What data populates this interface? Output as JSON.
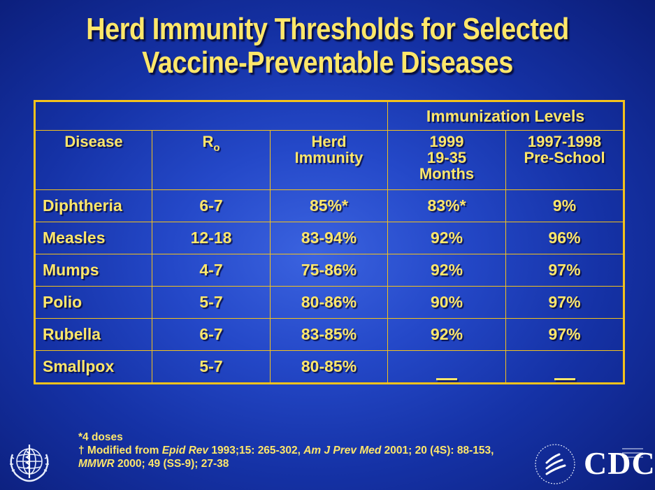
{
  "title": {
    "line1": "Herd Immunity Thresholds for Selected",
    "line2": "Vaccine-Preventable Diseases"
  },
  "table": {
    "group_header": "Immunization Levels",
    "headers": {
      "disease": "Disease",
      "ro_main": "R",
      "ro_sub": "o",
      "herd_line1": "Herd",
      "herd_line2": "Immunity",
      "y1999_line1": "1999",
      "y1999_line2": "19-35",
      "y1999_line3": "Months",
      "y9798_line1": "1997-1998",
      "y9798_line2": "Pre-School"
    },
    "rows": [
      {
        "disease": "Diphtheria",
        "ro": "6-7",
        "herd": "85%*",
        "m1999": "83%*",
        "preschool": "9%"
      },
      {
        "disease": "Measles",
        "ro": "12-18",
        "herd": "83-94%",
        "m1999": "92%",
        "preschool": "96%"
      },
      {
        "disease": "Mumps",
        "ro": "4-7",
        "herd": "75-86%",
        "m1999": "92%",
        "preschool": "97%"
      },
      {
        "disease": "Polio",
        "ro": "5-7",
        "herd": "80-86%",
        "m1999": "90%",
        "preschool": "97%"
      },
      {
        "disease": "Rubella",
        "ro": "6-7",
        "herd": "83-85%",
        "m1999": "92%",
        "preschool": "97%"
      },
      {
        "disease": "Smallpox",
        "ro": "5-7",
        "herd": "80-85%",
        "m1999": "",
        "preschool": ""
      }
    ]
  },
  "footnotes": {
    "note1": "*4 doses",
    "note2_a": "† Modified from ",
    "note2_b": "Epid Rev",
    "note2_c": " 1993;15: 265-302, ",
    "note2_d": "Am J Prev Med",
    "note2_e": " 2001; 20 (4S): 88-153, ",
    "note2_f": "MMWR",
    "note2_g": " 2000; 49 (SS-9); 27-38"
  },
  "logos": {
    "left": "who-emblem-icon",
    "right_text": "CDC",
    "right_icon": "hhs-eagle-icon"
  },
  "colors": {
    "text": "#ffe76a",
    "grid": "#f4c21c",
    "background": "#2448c8"
  }
}
